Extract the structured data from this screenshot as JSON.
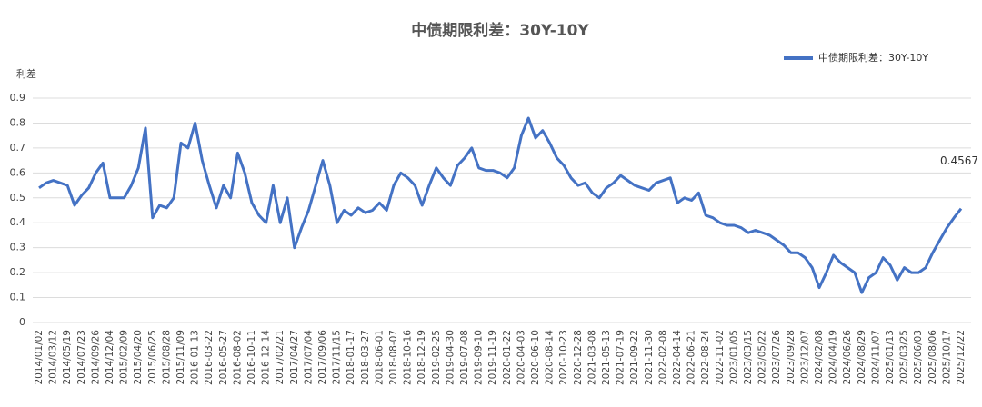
{
  "chart_data": {
    "type": "line",
    "title": "中债期限利差：30Y-10Y",
    "y_label": "利差",
    "x": [
      "2014/01/02",
      null,
      "2014/03/12",
      null,
      "2014/05/19",
      null,
      "2014/07/23",
      null,
      "2014/09/26",
      null,
      "2014/12/04",
      null,
      "2015/02/09",
      null,
      "2015/04/20",
      null,
      "2015/06/25",
      null,
      "2015/08/28",
      null,
      "2015/11/09",
      null,
      "2016-01-13",
      null,
      "2016-03-22",
      null,
      "2016-05-27",
      null,
      "2016-08-02",
      null,
      "2016-10-11",
      null,
      "2016-12-14",
      null,
      "2017/02/21",
      null,
      "2017/04/27",
      null,
      "2017/07/04",
      null,
      "2017/09/06",
      null,
      "2017/11/15",
      null,
      "2018-01-17",
      null,
      "2018-03-27",
      null,
      "2018-06-01",
      null,
      "2018-08-07",
      null,
      "2018-10-16",
      null,
      "2018-12-19",
      null,
      "2019-02-25",
      null,
      "2019-04-30",
      null,
      "2019-07-08",
      null,
      "2019-09-10",
      null,
      "2019-11-19",
      null,
      "2020-01-22",
      null,
      "2020-04-03",
      null,
      "2020-06-10",
      null,
      "2020-08-14",
      null,
      "2020-10-23",
      null,
      "2020-12-28",
      null,
      "2021-03-08",
      null,
      "2021-05-13",
      null,
      "2021-07-19",
      null,
      "2021-09-22",
      null,
      "2021-11-30",
      null,
      "2022-02-08",
      null,
      "2022-04-14",
      null,
      "2022-06-21",
      null,
      "2022-08-24",
      null,
      "2022-11-02",
      null,
      "2023/01/05",
      null,
      "2023/03/15",
      null,
      "2023/05/22",
      null,
      "2023/07/26",
      null,
      "2023/09/28",
      null,
      "2023/12/07",
      null,
      "2024/02/08",
      null,
      "2024/04/19",
      null,
      "2024/06/26",
      null,
      "2024/08/29",
      null,
      "2024/11/07",
      null,
      "2025/01/13",
      null,
      "2025/03/25",
      null,
      "2025/06/03",
      null,
      "2025/08/06",
      null,
      "2025/10/17",
      null,
      "2025/12/22"
    ],
    "series": [
      {
        "name": "中债期限利差：30Y-10Y",
        "color": "#4472c4",
        "values": [
          0.54,
          0.56,
          0.57,
          0.56,
          0.55,
          0.47,
          0.51,
          0.54,
          0.6,
          0.64,
          0.5,
          0.5,
          0.5,
          0.55,
          0.62,
          0.78,
          0.42,
          0.47,
          0.46,
          0.5,
          0.72,
          0.7,
          0.8,
          0.65,
          0.55,
          0.46,
          0.55,
          0.5,
          0.68,
          0.6,
          0.48,
          0.43,
          0.4,
          0.55,
          0.4,
          0.5,
          0.3,
          0.38,
          0.45,
          0.55,
          0.65,
          0.55,
          0.4,
          0.45,
          0.43,
          0.46,
          0.44,
          0.45,
          0.48,
          0.45,
          0.55,
          0.6,
          0.58,
          0.55,
          0.47,
          0.55,
          0.62,
          0.58,
          0.55,
          0.63,
          0.66,
          0.7,
          0.62,
          0.61,
          0.61,
          0.6,
          0.58,
          0.62,
          0.75,
          0.82,
          0.74,
          0.77,
          0.72,
          0.66,
          0.63,
          0.58,
          0.55,
          0.56,
          0.52,
          0.5,
          0.54,
          0.56,
          0.59,
          0.57,
          0.55,
          0.54,
          0.53,
          0.56,
          0.57,
          0.58,
          0.48,
          0.5,
          0.49,
          0.52,
          0.43,
          0.42,
          0.4,
          0.39,
          0.39,
          0.38,
          0.36,
          0.37,
          0.36,
          0.35,
          0.33,
          0.31,
          0.28,
          0.28,
          0.26,
          0.22,
          0.14,
          0.2,
          0.27,
          0.24,
          0.22,
          0.2,
          0.12,
          0.18,
          0.2,
          0.26,
          0.23,
          0.17,
          0.22,
          0.2,
          0.2,
          0.22,
          0.28,
          0.33,
          0.38,
          0.42,
          0.4567
        ]
      }
    ],
    "ylim": [
      0,
      0.9
    ],
    "yticks": [
      0,
      0.1,
      0.2,
      0.3,
      0.4,
      0.5,
      0.6,
      0.7,
      0.8,
      0.9
    ],
    "grid": true,
    "legend": "top-right"
  }
}
